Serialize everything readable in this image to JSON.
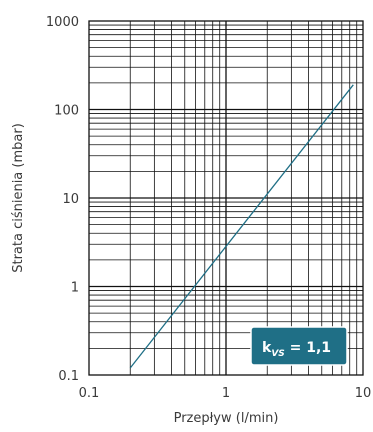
{
  "chart_data": {
    "type": "line",
    "xscale": "log",
    "yscale": "log",
    "xlim": [
      0.1,
      10
    ],
    "ylim": [
      0.1,
      1000
    ],
    "xlabel": "Przepływ (l/min)",
    "ylabel": "Strata ciśnienia (mbar)",
    "x_ticks": [
      "0.1",
      "1",
      "10"
    ],
    "y_ticks": [
      "0.1",
      "1",
      "10",
      "100",
      "1000"
    ],
    "grid": true,
    "series": [
      {
        "x": [
          0.2,
          8.5
        ],
        "y": [
          0.12,
          190
        ],
        "color": "#1f6f86"
      }
    ],
    "annotation": {
      "k": "k",
      "sub": "VS",
      "value": " = 1,1",
      "bg": "#1f6f86"
    }
  }
}
